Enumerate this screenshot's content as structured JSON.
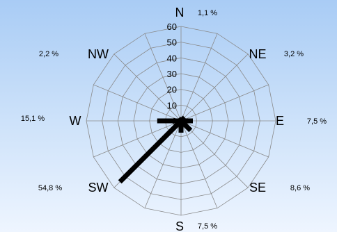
{
  "chart_data": {
    "type": "radar",
    "title": "",
    "directions": [
      "N",
      "NE",
      "E",
      "SE",
      "S",
      "SW",
      "W",
      "NW"
    ],
    "percentages": [
      "1,1 %",
      "3,2 %",
      "7,5 %",
      "8,6 %",
      "7,5 %",
      "54,8 %",
      "15,1 %",
      "2,2 %"
    ],
    "values": [
      1.1,
      3.2,
      7.5,
      8.6,
      7.5,
      54.8,
      15.1,
      2.2
    ],
    "r_ticks": [
      10,
      20,
      30,
      40,
      50,
      60
    ],
    "r_range": [
      0,
      60
    ],
    "spokes": 16,
    "grid": true,
    "colors": {
      "grid": "#8a8a8a",
      "bars": "#000000"
    }
  }
}
